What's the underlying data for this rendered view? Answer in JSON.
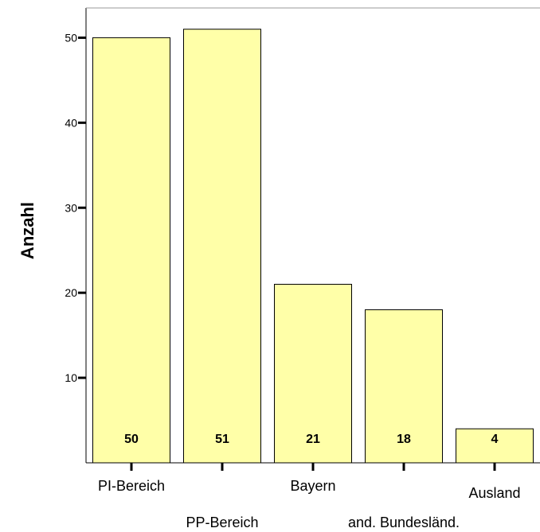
{
  "chart_data": {
    "type": "bar",
    "categories": [
      "PI-Bereich",
      "PP-Bereich",
      "Bayern",
      "and. Bundesländ.",
      "Ausland"
    ],
    "values": [
      50,
      51,
      21,
      18,
      4
    ],
    "data_labels": [
      "50",
      "51",
      "21",
      "18",
      "4"
    ],
    "title": "",
    "xlabel": "",
    "ylabel": "Anzahl",
    "ylim": [
      0,
      53.5
    ],
    "yticks": [
      10,
      20,
      30,
      40,
      50
    ],
    "grid": false,
    "bar_color": "#FFFFA8",
    "bar_edge_color": "#000000"
  }
}
